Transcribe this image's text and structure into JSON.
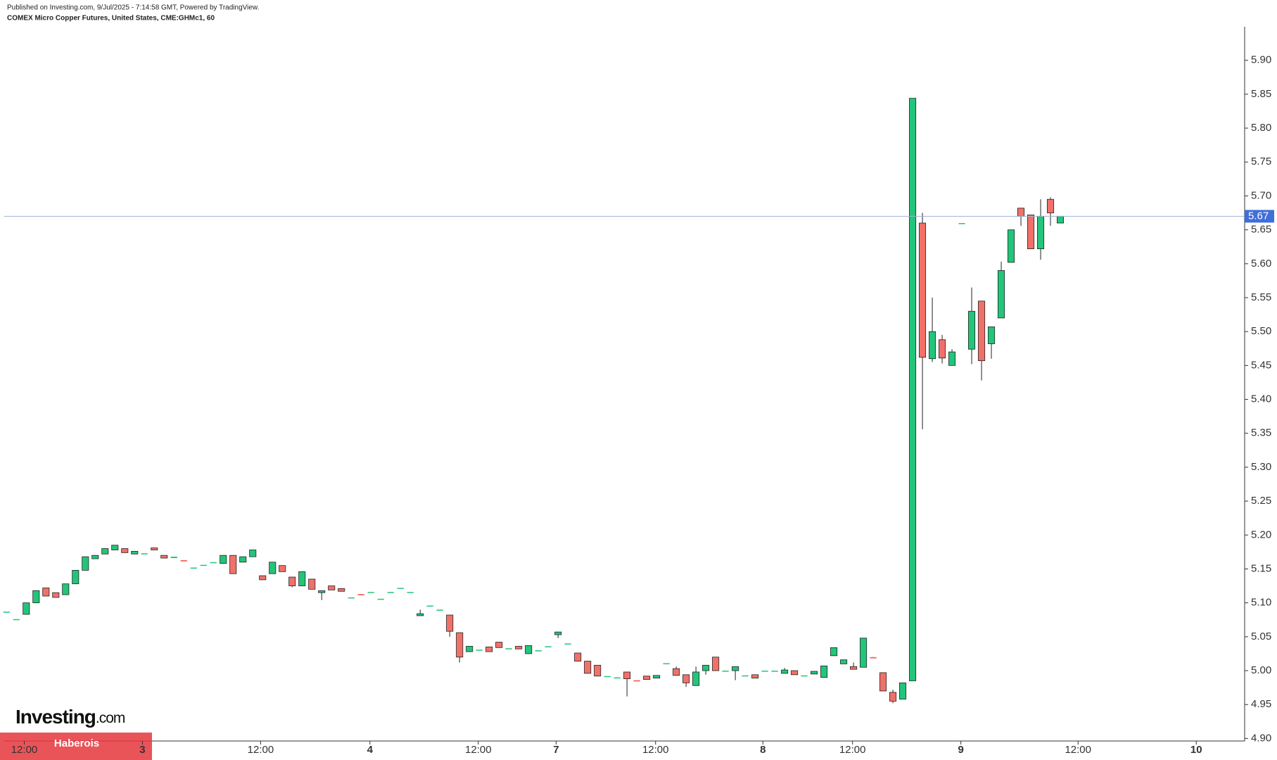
{
  "header": {
    "published": "Published on Investing.com, 9/Jul/2025 - 7:14:58 GMT, Powered by TradingView.",
    "instrument": "COMEX Micro Copper Futures, United States, CME:GHMc1, 60"
  },
  "logo": {
    "name": "Investing",
    "suffix": ".com"
  },
  "watermark": "Haberois",
  "chart_data": {
    "type": "candlestick",
    "up_color": "#22c57a",
    "down_color": "#f0716a",
    "last_price": 5.67,
    "last_price_color": "#3f6fd8",
    "xlim": [
      -0.25,
      124.5
    ],
    "xticks": [
      {
        "value": 1.8,
        "label": "12:00"
      },
      {
        "value": 13.8,
        "label": "3"
      },
      {
        "value": 25.8,
        "label": "12:00"
      },
      {
        "value": 36.9,
        "label": "4"
      },
      {
        "value": 47.9,
        "label": "12:00"
      },
      {
        "value": 55.8,
        "label": "7"
      },
      {
        "value": 65.9,
        "label": "12:00"
      },
      {
        "value": 76.8,
        "label": "8"
      },
      {
        "value": 85.9,
        "label": "12:00"
      },
      {
        "value": 96.9,
        "label": "9"
      },
      {
        "value": 108.8,
        "label": "12:00"
      },
      {
        "value": 120.8,
        "label": "10"
      }
    ],
    "ylim": [
      4.9,
      5.95
    ],
    "yticks": [
      {
        "value": 4.9,
        "label": "4.90"
      },
      4.95,
      {
        "value": 5,
        "label": "5.00"
      },
      5.05,
      {
        "value": 5.1,
        "label": "5.10"
      },
      5.15,
      {
        "value": 5.2,
        "label": "5.20"
      },
      5.25,
      {
        "value": 5.3,
        "label": "5.30"
      },
      5.35,
      {
        "value": 5.4,
        "label": "5.40"
      },
      5.45,
      {
        "value": 5.5,
        "label": "5.50"
      },
      5.55,
      {
        "value": 5.6,
        "label": "5.60"
      },
      5.65,
      {
        "value": 5.7,
        "label": "5.70"
      },
      5.75,
      {
        "value": 5.8,
        "label": "5.80"
      },
      5.85,
      {
        "value": 5.9,
        "label": "5.90"
      }
    ],
    "open": [
      5.087,
      5.076,
      5.083,
      5.1,
      5.122,
      5.115,
      5.112,
      5.128,
      5.148,
      5.165,
      5.172,
      5.178,
      5.18,
      5.172,
      5.173,
      5.181,
      5.17,
      5.166,
      5.163,
      5.152,
      5.156,
      5.16,
      5.158,
      5.17,
      5.16,
      5.168,
      5.14,
      5.143,
      5.155,
      5.138,
      5.125,
      5.135,
      5.115,
      5.125,
      5.121,
      5.108,
      5.113,
      5.116,
      5.106,
      5.116,
      5.122,
      5.116,
      5.081,
      5.096,
      5.09,
      5.082,
      5.056,
      5.028,
      5.031,
      5.035,
      5.042,
      5.033,
      5.036,
      5.025,
      5.03,
      5.036,
      5.053,
      5.04,
      5.026,
      5.014,
      5.008,
      4.992,
      4.99,
      4.998,
      4.986,
      4.992,
      4.989,
      5.011,
      5.003,
      4.994,
      4.978,
      5.0,
      5.02,
      5.0,
      5.0,
      4.993,
      4.994,
      5.0,
      5.0,
      4.996,
      5.0,
      4.993,
      4.995,
      4.99,
      5.022,
      5.01,
      5.006,
      5.005,
      5.02,
      4.997,
      4.968,
      4.958,
      4.985,
      5.66,
      5.46,
      5.488,
      5.45,
      5.66,
      5.474,
      5.545,
      5.482,
      5.52,
      5.602,
      5.682,
      5.672,
      5.622,
      5.695,
      5.66
    ],
    "high": [
      5.087,
      5.076,
      5.1,
      5.118,
      5.122,
      5.115,
      5.128,
      5.148,
      5.168,
      5.17,
      5.18,
      5.185,
      5.18,
      5.176,
      5.173,
      5.181,
      5.17,
      5.168,
      5.163,
      5.152,
      5.156,
      5.16,
      5.17,
      5.17,
      5.168,
      5.178,
      5.14,
      5.16,
      5.155,
      5.138,
      5.146,
      5.135,
      5.118,
      5.125,
      5.121,
      5.108,
      5.113,
      5.116,
      5.106,
      5.116,
      5.122,
      5.116,
      5.09,
      5.096,
      5.09,
      5.082,
      5.056,
      5.036,
      5.031,
      5.035,
      5.042,
      5.033,
      5.036,
      5.037,
      5.03,
      5.036,
      5.057,
      5.04,
      5.026,
      5.014,
      5.008,
      4.992,
      4.99,
      4.998,
      4.986,
      4.992,
      4.993,
      5.011,
      5.006,
      4.994,
      5.006,
      5.008,
      5.02,
      5.0,
      5.006,
      4.993,
      4.994,
      5.0,
      5.0,
      5.004,
      5.0,
      4.993,
      4.999,
      5.007,
      5.034,
      5.016,
      5.012,
      5.048,
      5.02,
      4.997,
      4.972,
      4.982,
      5.844,
      5.675,
      5.55,
      5.495,
      5.474,
      5.66,
      5.565,
      5.545,
      5.507,
      5.603,
      5.65,
      5.682,
      5.672,
      5.695,
      5.698,
      5.67
    ],
    "low": [
      5.087,
      5.076,
      5.083,
      5.1,
      5.11,
      5.108,
      5.112,
      5.128,
      5.148,
      5.165,
      5.172,
      5.178,
      5.174,
      5.172,
      5.173,
      5.178,
      5.166,
      5.166,
      5.161,
      5.152,
      5.156,
      5.16,
      5.158,
      5.143,
      5.16,
      5.168,
      5.134,
      5.143,
      5.146,
      5.123,
      5.125,
      5.12,
      5.104,
      5.119,
      5.117,
      5.108,
      5.111,
      5.116,
      5.106,
      5.116,
      5.122,
      5.116,
      5.081,
      5.096,
      5.09,
      5.05,
      5.012,
      5.028,
      5.031,
      5.028,
      5.034,
      5.033,
      5.032,
      5.025,
      5.03,
      5.036,
      5.048,
      5.04,
      5.014,
      4.996,
      4.992,
      4.992,
      4.99,
      4.962,
      4.984,
      4.987,
      4.989,
      5.011,
      4.993,
      4.976,
      4.978,
      4.994,
      5.0,
      5.0,
      4.986,
      4.993,
      4.989,
      5.0,
      5.0,
      4.996,
      4.994,
      4.993,
      4.995,
      4.99,
      5.022,
      5.01,
      5.002,
      5.005,
      5.018,
      4.97,
      4.952,
      4.958,
      4.985,
      5.356,
      5.455,
      5.453,
      5.45,
      5.66,
      5.452,
      5.428,
      5.46,
      5.52,
      5.602,
      5.656,
      5.622,
      5.606,
      5.656,
      5.66
    ],
    "close": [
      5.087,
      5.076,
      5.1,
      5.118,
      5.11,
      5.108,
      5.128,
      5.148,
      5.168,
      5.17,
      5.18,
      5.185,
      5.174,
      5.176,
      5.173,
      5.178,
      5.166,
      5.168,
      5.161,
      5.152,
      5.156,
      5.16,
      5.17,
      5.143,
      5.168,
      5.178,
      5.134,
      5.16,
      5.146,
      5.125,
      5.146,
      5.12,
      5.118,
      5.119,
      5.117,
      5.108,
      5.111,
      5.116,
      5.106,
      5.116,
      5.122,
      5.116,
      5.084,
      5.096,
      5.09,
      5.058,
      5.02,
      5.036,
      5.031,
      5.028,
      5.034,
      5.033,
      5.032,
      5.037,
      5.03,
      5.036,
      5.057,
      5.04,
      5.014,
      4.996,
      4.992,
      4.992,
      4.99,
      4.988,
      4.984,
      4.987,
      4.993,
      5.011,
      4.993,
      4.982,
      4.998,
      5.008,
      5.0,
      5.0,
      5.006,
      4.993,
      4.989,
      5.0,
      5.0,
      5.001,
      4.994,
      4.993,
      4.999,
      5.007,
      5.034,
      5.016,
      5.002,
      5.048,
      5.018,
      4.97,
      4.955,
      4.982,
      5.844,
      5.462,
      5.5,
      5.461,
      5.47,
      5.66,
      5.53,
      5.457,
      5.507,
      5.59,
      5.65,
      5.67,
      5.622,
      5.67,
      5.675,
      5.67
    ]
  }
}
